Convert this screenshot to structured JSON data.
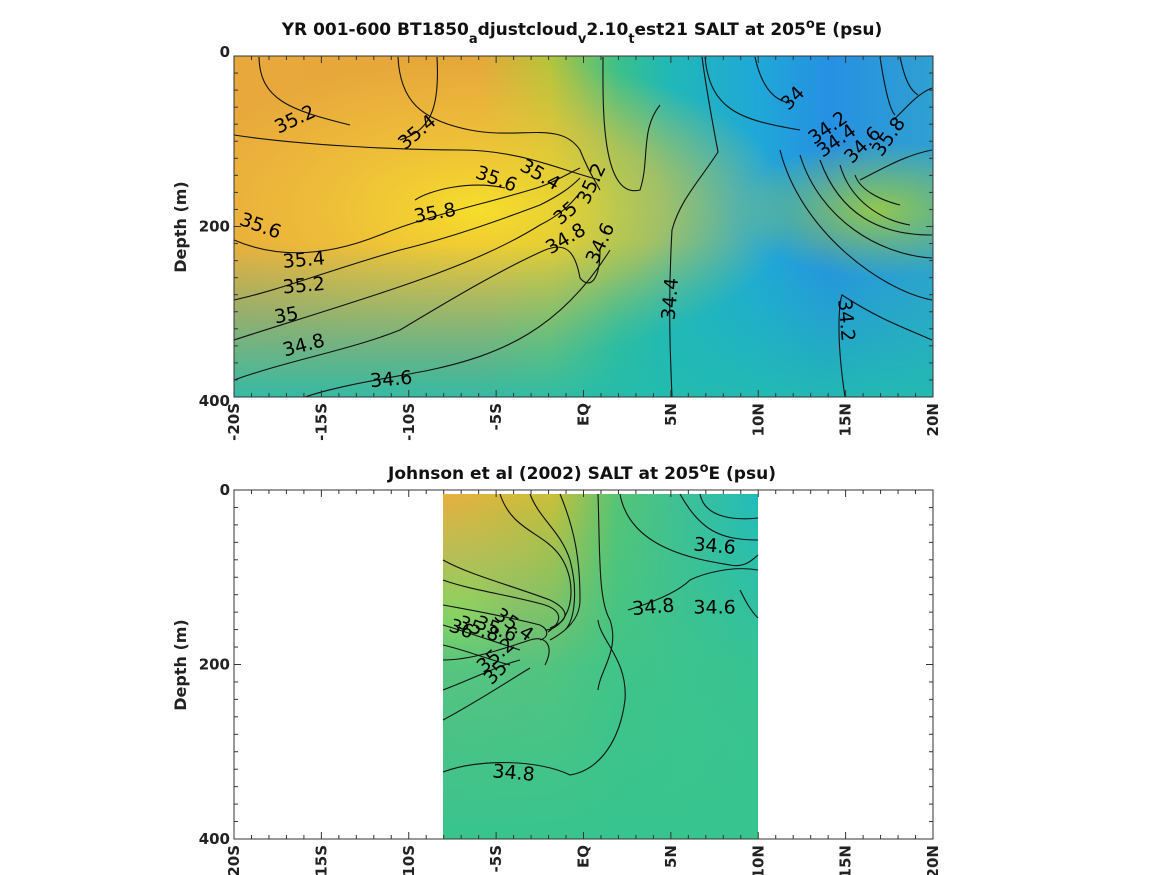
{
  "chart_data": [
    {
      "type": "heatmap",
      "title_prefix": "YR 001-600 BT1850",
      "title_sub1": "a",
      "title_mid1": "djustcloud",
      "title_sub2": "v",
      "title_mid2": "2.10",
      "title_sub3": "t",
      "title_mid3": "est21 SALT at 205",
      "title_sup": "o",
      "title_suffix": "E (psu)",
      "ylabel": "Depth (m)",
      "xlim": [
        -20,
        20
      ],
      "ylim": [
        0,
        400
      ],
      "x_ticks": [
        -20,
        -15,
        -10,
        -5,
        0,
        5,
        10,
        15,
        20
      ],
      "x_tick_labels": [
        "-20S",
        "-15S",
        "-10S",
        "-5S",
        "EQ",
        "5N",
        "10N",
        "15N",
        "20N"
      ],
      "y_ticks": [
        0,
        200,
        400
      ],
      "y_tick_labels": [
        "0",
        "200",
        "400"
      ],
      "data_x_range": [
        -20,
        20
      ],
      "contour_labels": [
        {
          "text": "35.2",
          "lat": -16.5,
          "depth": 75,
          "rot": -25
        },
        {
          "text": "35.4",
          "lat": -9.5,
          "depth": 90,
          "rot": -40
        },
        {
          "text": "35.6",
          "lat": -5,
          "depth": 145,
          "rot": 20
        },
        {
          "text": "35.4",
          "lat": -2.5,
          "depth": 140,
          "rot": 30
        },
        {
          "text": "35.2",
          "lat": 0.5,
          "depth": 150,
          "rot": -65
        },
        {
          "text": "35.8",
          "lat": -8.5,
          "depth": 185,
          "rot": -10
        },
        {
          "text": "35.6",
          "lat": -18.5,
          "depth": 200,
          "rot": 20
        },
        {
          "text": "35.4",
          "lat": -16,
          "depth": 240,
          "rot": -5
        },
        {
          "text": "35.2",
          "lat": -16,
          "depth": 270,
          "rot": -5
        },
        {
          "text": "35",
          "lat": -17,
          "depth": 305,
          "rot": -10
        },
        {
          "text": "35",
          "lat": -1,
          "depth": 185,
          "rot": -40
        },
        {
          "text": "34.8",
          "lat": -1,
          "depth": 215,
          "rot": -30
        },
        {
          "text": "34.6",
          "lat": 1,
          "depth": 220,
          "rot": -65
        },
        {
          "text": "34.8",
          "lat": -16,
          "depth": 340,
          "rot": -15
        },
        {
          "text": "34.6",
          "lat": -11,
          "depth": 380,
          "rot": -5
        },
        {
          "text": "34.4",
          "lat": 5,
          "depth": 285,
          "rot": -85
        },
        {
          "text": "34",
          "lat": 12,
          "depth": 50,
          "rot": -45
        },
        {
          "text": "34.2",
          "lat": 14,
          "depth": 85,
          "rot": -35
        },
        {
          "text": "34.4",
          "lat": 14.5,
          "depth": 100,
          "rot": -35
        },
        {
          "text": "34.6",
          "lat": 16,
          "depth": 105,
          "rot": -45
        },
        {
          "text": "35.8",
          "lat": 17.5,
          "depth": 95,
          "rot": -55
        },
        {
          "text": "34.2",
          "lat": 15,
          "depth": 310,
          "rot": 85
        }
      ]
    },
    {
      "type": "heatmap",
      "title_prefix": "Johnson et al (2002) SALT at 205",
      "title_sup": "o",
      "title_suffix": "E (psu)",
      "ylabel": "Depth (m)",
      "xlim": [
        -20,
        20
      ],
      "ylim": [
        0,
        400
      ],
      "x_ticks": [
        -20,
        -15,
        -10,
        -5,
        0,
        5,
        10,
        15,
        20
      ],
      "x_tick_labels": [
        "-20S",
        "-15S",
        "-10S",
        "-5S",
        "EQ",
        "5N",
        "10N",
        "15N",
        "20N"
      ],
      "y_ticks": [
        0,
        200,
        400
      ],
      "y_tick_labels": [
        "0",
        "200",
        "400"
      ],
      "data_x_range": [
        -8,
        10
      ],
      "contour_labels": [
        {
          "text": "34.6",
          "lat": 7.5,
          "depth": 65,
          "rot": 5
        },
        {
          "text": "34.8",
          "lat": 4,
          "depth": 135,
          "rot": -5
        },
        {
          "text": "34.6",
          "lat": 7.5,
          "depth": 135,
          "rot": 0
        },
        {
          "text": "36",
          "lat": -7,
          "depth": 160,
          "rot": 20
        },
        {
          "text": "35.8",
          "lat": -6,
          "depth": 160,
          "rot": 20
        },
        {
          "text": "35.6",
          "lat": -5,
          "depth": 160,
          "rot": 20
        },
        {
          "text": "35.4",
          "lat": -4,
          "depth": 155,
          "rot": 35
        },
        {
          "text": "35.2",
          "lat": -5,
          "depth": 190,
          "rot": -40
        },
        {
          "text": "35",
          "lat": -5,
          "depth": 210,
          "rot": -45
        },
        {
          "text": "34.8",
          "lat": -4,
          "depth": 325,
          "rot": 5
        }
      ]
    }
  ]
}
